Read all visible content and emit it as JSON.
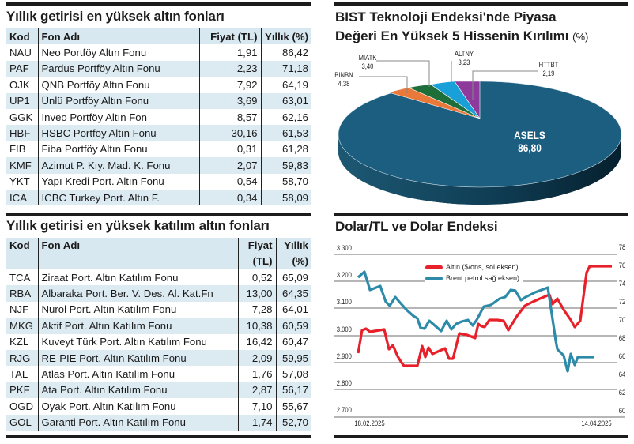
{
  "table1": {
    "title": "Yıllık getirisi en yüksek altın fonları",
    "headers": [
      "Kod",
      "Fon Adı",
      "Fiyat (TL)",
      "Yıllık (%)"
    ],
    "rows": [
      [
        "NAU",
        "Neo Portföy Altın Fonu",
        "1,91",
        "86,42"
      ],
      [
        "PAF",
        "Pardus Portföy Altın Fonu",
        "2,23",
        "71,18"
      ],
      [
        "OJK",
        "QNB Portföy Altın Fonu",
        "7,92",
        "64,19"
      ],
      [
        "UP1",
        "Ünlü Portföy Altın Fonu",
        "3,69",
        "63,01"
      ],
      [
        "GGK",
        "Inveo Portföy Altın Fon",
        "8,57",
        "62,16"
      ],
      [
        "HBF",
        "HSBC Portföy Altın Fonu",
        "30,16",
        "61,53"
      ],
      [
        "FIB",
        "Fiba Portföy Altın Fonu",
        "0,31",
        "61,28"
      ],
      [
        "KMF",
        "Azimut P.  Kıy. Mad. K. Fonu",
        "2,07",
        "59,83"
      ],
      [
        "YKT",
        "Yapı Kredi Port. Altın Fonu",
        "0,54",
        "58,70"
      ],
      [
        "ICA",
        "ICBC Turkey Port. Altın F.",
        "0,34",
        "58,09"
      ]
    ]
  },
  "table2": {
    "title": "Yıllık getirisi en yüksek katılım altın fonları",
    "headers": [
      "Kod",
      "Fon Adı",
      "Fiyat",
      "(TL)",
      "Yıllık",
      "(%)"
    ],
    "rows": [
      [
        "TCA",
        "Ziraat Port.  Altın Katılım Fonu",
        "0,52",
        "65,09"
      ],
      [
        "RBA",
        "Albaraka Port. Ber. V.  Des. Al. Kat.Fn",
        "13,00",
        "64,35"
      ],
      [
        "NJF",
        "Nurol Port. Altın Katılım Fonu",
        "7,28",
        "64,01"
      ],
      [
        "MKG",
        "Aktif Port. Altın Katılım Fonu",
        "10,38",
        "60,59"
      ],
      [
        "KZL",
        "Kuveyt Türk Port.  Altın Katılım Fonu",
        "16,42",
        "60,47"
      ],
      [
        "RJG",
        "RE-PIE Port.  Altın Katılım Fonu",
        "2,09",
        "59,95"
      ],
      [
        "TAL",
        "Atlas Port.  Altın Katılım Fonu",
        "1,76",
        "57,08"
      ],
      [
        "PKF",
        "Ata Port.  Altın Katılım Fonu",
        "2,87",
        "56,17"
      ],
      [
        "OGD",
        "Oyak Port.  Altın Katılım Fonu",
        "7,10",
        "55,67"
      ],
      [
        "GOL",
        "Garanti Port. Altın Katılım Fonu",
        "1,74",
        "52,70"
      ]
    ]
  },
  "pie": {
    "title_line1": "BIST Teknoloji Endeksi'nde Piyasa",
    "title_line2": "Değeri En Yüksek 5 Hissenin  Kırılımı",
    "title_unit": "(%)"
  },
  "line": {
    "title": "Dolar/TL ve Dolar Endeksi",
    "legend_gold": "Altın ($/ons, sol eksen)",
    "legend_brent": "Brent petrol  sağ eksen)",
    "x_start": "18.02.2025",
    "x_end": "14.04.2025"
  },
  "colors": {
    "table_header_bg": "#d8e8f0",
    "table_stripe": "#dceaf2",
    "asels": "#1b5e80",
    "binbn": "#e8793b",
    "miatk": "#1e6e3a",
    "altny": "#1aa0d8",
    "httbt": "#8e3a9c",
    "gold_line": "#e8202a",
    "brent_line": "#2d8aa8"
  },
  "chart_data": [
    {
      "type": "pie",
      "title": "BIST Teknoloji Endeksi'nde Piyasa Değeri En Yüksek 5 Hissenin Kırılımı (%)",
      "categories": [
        "ASELS",
        "BINBN",
        "MIATK",
        "ALTNY",
        "HTTBT"
      ],
      "values": [
        86.8,
        4.38,
        3.4,
        3.23,
        2.19
      ],
      "labels": [
        {
          "name": "ASELS",
          "value": "86,80"
        },
        {
          "name": "BINBN",
          "value": "4,38"
        },
        {
          "name": "MIATK",
          "value": "3,40"
        },
        {
          "name": "ALTNY",
          "value": "3,23"
        },
        {
          "name": "HTTBT",
          "value": "2,19"
        }
      ]
    },
    {
      "type": "line",
      "title": "Dolar/TL ve Dolar Endeksi",
      "x_range": [
        "18.02.2025",
        "14.04.2025"
      ],
      "x_ticks": [
        "18.02.2025",
        "14.04.2025"
      ],
      "left_axis": {
        "label": "Altın ($/ons)",
        "ticks": [
          "3.300",
          "3.200",
          "3.100",
          "3.000",
          "2.900",
          "2.800",
          "2.700"
        ],
        "ylim": [
          2700,
          3300
        ]
      },
      "right_axis": {
        "label": "Brent petrol",
        "ticks": [
          "78",
          "76",
          "74",
          "72",
          "70",
          "68",
          "66",
          "64",
          "62",
          "60"
        ],
        "ylim": [
          60,
          78
        ]
      },
      "grid": true,
      "legend_position": "top-center",
      "series": [
        {
          "name": "Altın ($/ons, sol eksen)",
          "axis": "left",
          "color": "#e8202a",
          "values": [
            2915,
            2995,
            3000,
            2990,
            2992,
            2995,
            2930,
            2940,
            2905,
            2880,
            2880,
            2880,
            2940,
            2900,
            2935,
            2910,
            2915,
            2920,
            2900,
            2900,
            2975,
            2985,
            2978,
            3020,
            3015,
            3030,
            3030,
            3025,
            3000,
            3040,
            3080,
            3090,
            3100,
            3110,
            3120,
            3090,
            3100,
            3060,
            3020,
            2990,
            3020,
            3220,
            3220,
            3220
          ]
        },
        {
          "name": "Brent petrol  sağ eksen)",
          "axis": "right",
          "color": "#2d8aa8",
          "values": [
            75.4,
            75.8,
            73.2,
            73.5,
            73.7,
            72.2,
            71.7,
            72.8,
            72.0,
            71.0,
            70.4,
            68.7,
            68.6,
            69.7,
            69.2,
            68.3,
            70.0,
            68.9,
            69.6,
            69.8,
            69.6,
            70.2,
            71.3,
            71.3,
            71.8,
            72.0,
            72.5,
            72.7,
            71.7,
            72.1,
            72.6,
            73.0,
            65.3,
            64.6,
            64.0,
            61.3,
            64.9,
            63.2,
            64.0,
            64.0,
            64.0
          ]
        }
      ]
    }
  ]
}
